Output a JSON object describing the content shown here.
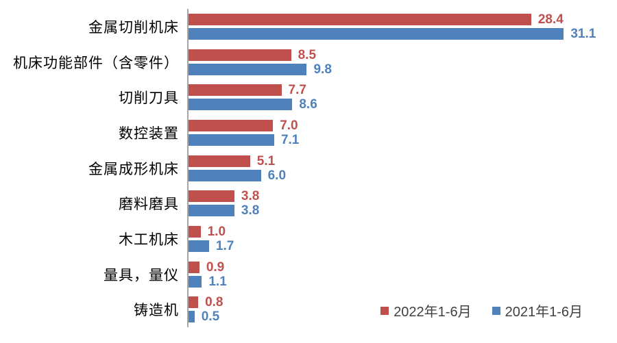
{
  "chart_data": {
    "type": "bar",
    "orientation": "horizontal",
    "title": "",
    "xlabel": "",
    "ylabel": "",
    "xlim": [
      0,
      35
    ],
    "grid": false,
    "value_labels": true,
    "axis_color": "#a6a6a6",
    "background": "#ffffff",
    "categories": [
      "金属切削机床",
      "机床功能部件（含零件）",
      "切削刀具",
      "数控装置",
      "金属成形机床",
      "磨料磨具",
      "木工机床",
      "量具，量仪",
      "铸造机"
    ],
    "series": [
      {
        "name": "2022年1-6月",
        "color": "#c0504d",
        "values": [
          28.4,
          8.5,
          7.7,
          7.0,
          5.1,
          3.8,
          1.0,
          0.9,
          0.8
        ]
      },
      {
        "name": "2021年1-6月",
        "color": "#4f81bd",
        "values": [
          31.1,
          9.8,
          8.6,
          7.1,
          6.0,
          3.8,
          1.7,
          1.1,
          0.5
        ]
      }
    ],
    "legend_position": "bottom-right"
  },
  "legend": {
    "items": [
      {
        "label": "2022年1-6月",
        "color": "#c0504d"
      },
      {
        "label": "2021年1-6月",
        "color": "#4f81bd"
      }
    ]
  }
}
